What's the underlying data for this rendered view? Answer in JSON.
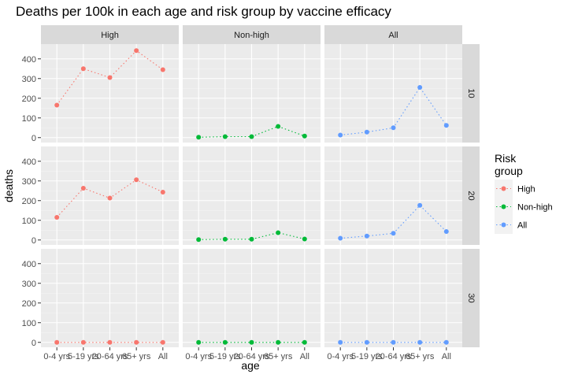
{
  "chart_data": {
    "type": "line",
    "title": "Deaths per 100k in each age and risk group by vaccine efficacy",
    "xlabel": "age",
    "ylabel": "deaths",
    "categories": [
      "0-4 yrs",
      "5-19 yrs",
      "20-64 yrs",
      "65+ yrs",
      "All"
    ],
    "ylim": [
      -25,
      475
    ],
    "yticks": [
      0,
      100,
      200,
      300,
      400
    ],
    "facet_cols": [
      "High",
      "Non-high",
      "All"
    ],
    "facet_rows": [
      "10",
      "20",
      "30"
    ],
    "grid": true,
    "legend": {
      "title_lines": [
        "Risk",
        "group"
      ],
      "placement": "right",
      "entries": [
        "High",
        "Non-high",
        "All"
      ]
    },
    "colors": {
      "High": "#F8766D",
      "Non-high": "#00BA38",
      "All": "#619CFF"
    },
    "panels": [
      {
        "row": "10",
        "col": "High",
        "values": [
          165,
          350,
          305,
          442,
          345
        ]
      },
      {
        "row": "10",
        "col": "Non-high",
        "values": [
          2,
          5,
          5,
          57,
          8
        ]
      },
      {
        "row": "10",
        "col": "All",
        "values": [
          13,
          28,
          50,
          255,
          62
        ]
      },
      {
        "row": "20",
        "col": "High",
        "values": [
          115,
          263,
          213,
          306,
          243
        ]
      },
      {
        "row": "20",
        "col": "Non-high",
        "values": [
          2,
          4,
          4,
          37,
          5
        ]
      },
      {
        "row": "20",
        "col": "All",
        "values": [
          9,
          20,
          34,
          176,
          43
        ]
      },
      {
        "row": "30",
        "col": "High",
        "values": [
          0,
          0,
          0,
          0,
          0
        ]
      },
      {
        "row": "30",
        "col": "Non-high",
        "values": [
          0,
          0,
          0,
          0,
          0
        ]
      },
      {
        "row": "30",
        "col": "All",
        "values": [
          0,
          0,
          0,
          0,
          0
        ]
      }
    ]
  }
}
